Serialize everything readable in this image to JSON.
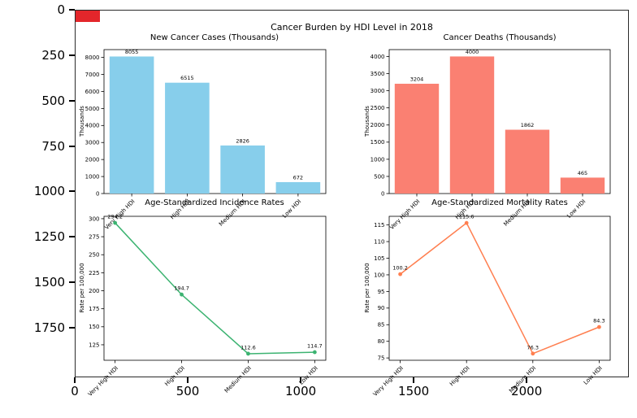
{
  "figure": {
    "suptitle": "Cancer Burden by HDI Level in 2018",
    "red_marker_color": "#e3262b",
    "background": "#ffffff"
  },
  "outer_axes": {
    "y_tick_labels": [
      "0",
      "250",
      "500",
      "750",
      "1000",
      "1250",
      "1500",
      "1750"
    ],
    "x_tick_labels": [
      "0",
      "500",
      "1000",
      "1500",
      "2000"
    ]
  },
  "chart_data": [
    {
      "id": "new-cancer-cases",
      "type": "bar",
      "title": "New Cancer Cases (Thousands)",
      "ylabel": "Thousands",
      "categories": [
        "Very High HDI",
        "High HDI",
        "Medium HDI",
        "Low HDI"
      ],
      "values": [
        8055,
        6515,
        2826,
        672
      ],
      "value_labels": [
        "8055",
        "6515",
        "2826",
        "672"
      ],
      "yticks": [
        0,
        1000,
        2000,
        3000,
        4000,
        5000,
        6000,
        7000,
        8000
      ],
      "ylim": [
        0,
        8460
      ],
      "color": "#87CEEB",
      "grid": false,
      "legend": "none"
    },
    {
      "id": "cancer-deaths",
      "type": "bar",
      "title": "Cancer Deaths (Thousands)",
      "ylabel": "Thousands",
      "categories": [
        "Very High HDI",
        "High HDI",
        "Medium HDI",
        "Low HDI"
      ],
      "values": [
        3204,
        4000,
        1862,
        465
      ],
      "value_labels": [
        "3204",
        "4000",
        "1862",
        "465"
      ],
      "yticks": [
        0,
        500,
        1000,
        1500,
        2000,
        2500,
        3000,
        3500,
        4000
      ],
      "ylim": [
        0,
        4200
      ],
      "color": "#FA8072",
      "grid": false,
      "legend": "none"
    },
    {
      "id": "incidence-rates",
      "type": "line",
      "title": "Age-Standardized Incidence Rates",
      "ylabel": "Rate per 100,000",
      "categories": [
        "Very High HDI",
        "High HDI",
        "Medium HDI",
        "Low HDI"
      ],
      "values": [
        294.2,
        194.7,
        112.6,
        114.7
      ],
      "value_labels": [
        "294.2",
        "194.7",
        "112.6",
        "114.7"
      ],
      "yticks": [
        125,
        150,
        175,
        200,
        225,
        250,
        275,
        300
      ],
      "ylim": [
        103.5,
        303.3
      ],
      "color": "#3CB371",
      "grid": false,
      "legend": "none"
    },
    {
      "id": "mortality-rates",
      "type": "line",
      "title": "Age-Standardized Mortality Rates",
      "ylabel": "Rate per 100,000",
      "categories": [
        "Very High HDI",
        "High HDI",
        "Medium HDI",
        "Low HDI"
      ],
      "values": [
        100.2,
        115.6,
        76.3,
        84.3
      ],
      "value_labels": [
        "100.2",
        "115.6",
        "76.3",
        "84.3"
      ],
      "yticks": [
        75,
        80,
        85,
        90,
        95,
        100,
        105,
        110,
        115
      ],
      "ylim": [
        74.3,
        117.6
      ],
      "color": "#FF7F50",
      "grid": false,
      "legend": "none"
    }
  ]
}
